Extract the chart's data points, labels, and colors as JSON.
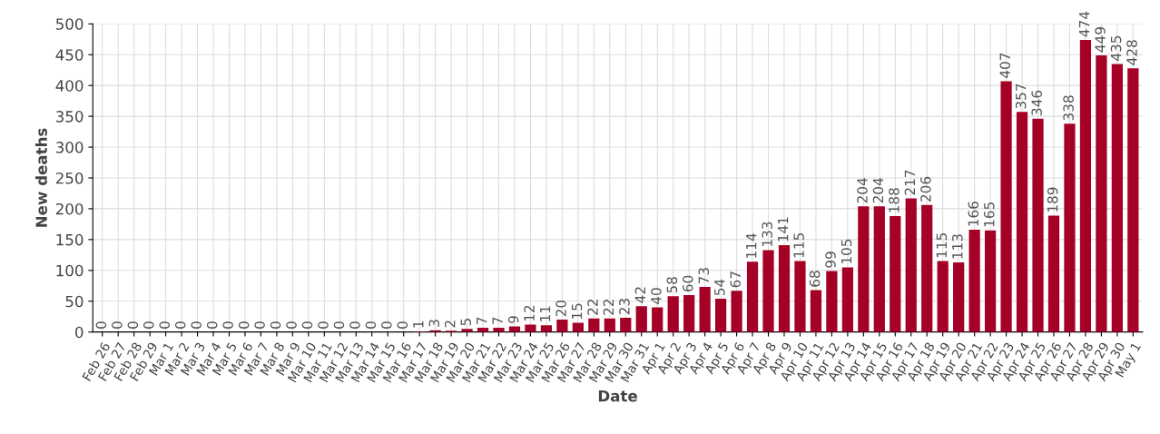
{
  "chart_data": {
    "type": "bar",
    "xlabel": "Date",
    "ylabel": "New deaths",
    "categories": [
      "Feb 26",
      "Feb 27",
      "Feb 28",
      "Feb 29",
      "Mar 1",
      "Mar 2",
      "Mar 3",
      "Mar 4",
      "Mar 5",
      "Mar 6",
      "Mar 7",
      "Mar 8",
      "Mar 9",
      "Mar 10",
      "Mar 11",
      "Mar 12",
      "Mar 13",
      "Mar 14",
      "Mar 15",
      "Mar 16",
      "Mar 17",
      "Mar 18",
      "Mar 19",
      "Mar 20",
      "Mar 21",
      "Mar 22",
      "Mar 23",
      "Mar 24",
      "Mar 25",
      "Mar 26",
      "Mar 27",
      "Mar 28",
      "Mar 29",
      "Mar 30",
      "Mar 31",
      "Apr 1",
      "Apr 2",
      "Apr 3",
      "Apr 4",
      "Apr 5",
      "Apr 6",
      "Apr 7",
      "Apr 8",
      "Apr 9",
      "Apr 10",
      "Apr 11",
      "Apr 12",
      "Apr 13",
      "Apr 14",
      "Apr 15",
      "Apr 16",
      "Apr 17",
      "Apr 18",
      "Apr 19",
      "Apr 20",
      "Apr 21",
      "Apr 22",
      "Apr 23",
      "Apr 24",
      "Apr 25",
      "Apr 26",
      "Apr 27",
      "Apr 28",
      "Apr 29",
      "Apr 30",
      "May 1"
    ],
    "values": [
      0,
      0,
      0,
      0,
      0,
      0,
      0,
      0,
      0,
      0,
      0,
      0,
      0,
      0,
      0,
      0,
      0,
      0,
      0,
      0,
      1,
      3,
      2,
      5,
      7,
      7,
      9,
      12,
      11,
      20,
      15,
      22,
      22,
      23,
      42,
      40,
      58,
      60,
      73,
      54,
      67,
      114,
      133,
      141,
      115,
      68,
      99,
      105,
      204,
      204,
      188,
      217,
      206,
      115,
      113,
      166,
      165,
      407,
      357,
      346,
      189,
      338,
      474,
      449,
      435,
      428
    ],
    "color": "#a50026",
    "ylim": [
      0,
      500
    ],
    "yticks": [
      0,
      50,
      100,
      150,
      200,
      250,
      300,
      350,
      400,
      450,
      500
    ],
    "grid": true,
    "data_labels": true
  }
}
